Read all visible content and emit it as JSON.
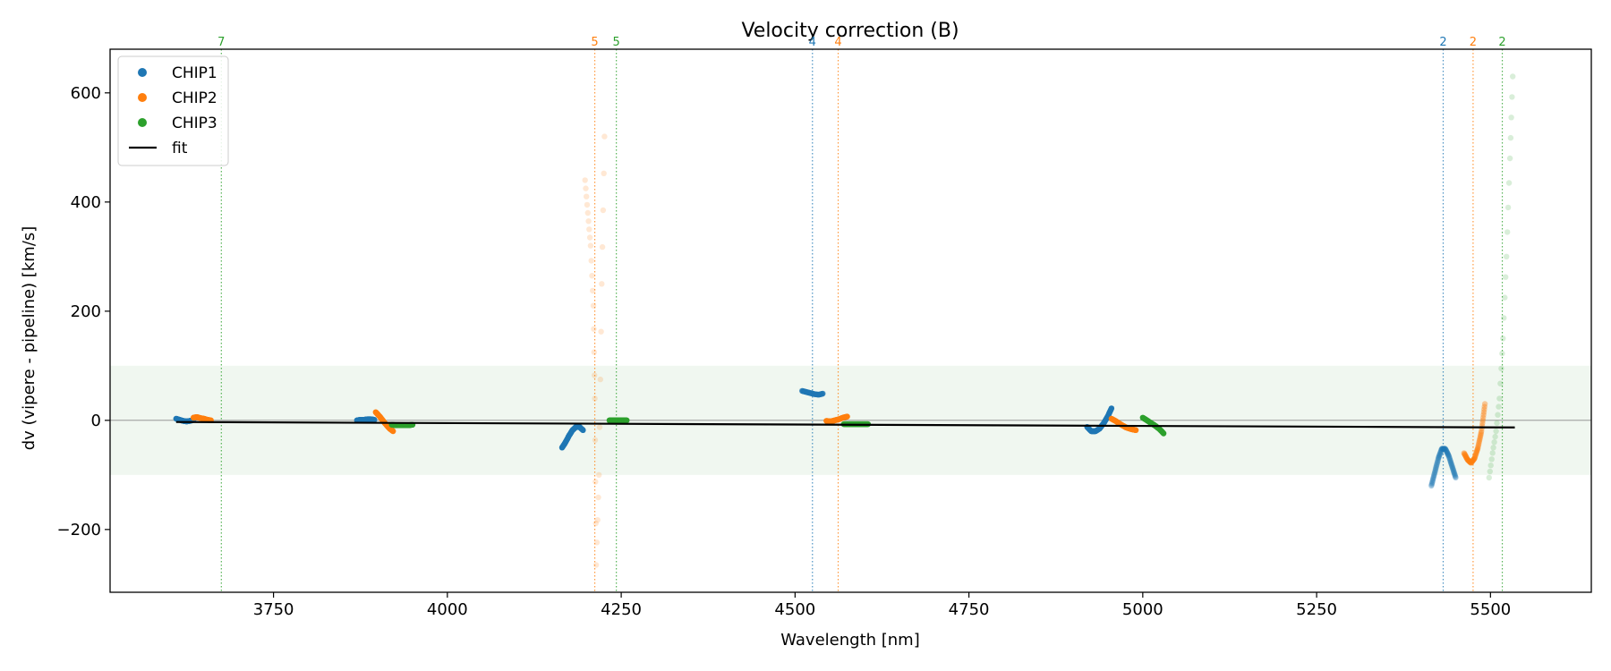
{
  "chart_data": {
    "type": "scatter",
    "title": "Velocity correction (B)",
    "xlabel": "Wavelength [nm]",
    "ylabel": "dv (vipere - pipeline) [km/s]",
    "xlim": [
      3515,
      5645
    ],
    "ylim": [
      -315,
      680
    ],
    "xticks": [
      3750,
      4000,
      4250,
      4500,
      4750,
      5000,
      5250,
      5500
    ],
    "yticks": [
      -200,
      0,
      200,
      400,
      600
    ],
    "tolerance_band": [
      -100,
      100
    ],
    "colors": {
      "CHIP1": "#1f77b4",
      "CHIP2": "#ff7f0e",
      "CHIP3": "#2ca02c",
      "fit": "#000000",
      "band": "#e6f2e6"
    },
    "legend": {
      "placement": "top-left",
      "entries": [
        {
          "label": "CHIP1",
          "kind": "marker",
          "color": "#1f77b4"
        },
        {
          "label": "CHIP2",
          "kind": "marker",
          "color": "#ff7f0e"
        },
        {
          "label": "CHIP3",
          "kind": "marker",
          "color": "#2ca02c"
        },
        {
          "label": "fit",
          "kind": "line",
          "color": "#000000"
        }
      ]
    },
    "vlines": [
      {
        "x": 3675,
        "label": "7",
        "chip": "CHIP3"
      },
      {
        "x": 4212,
        "label": "5",
        "chip": "CHIP2"
      },
      {
        "x": 4243,
        "label": "5",
        "chip": "CHIP3"
      },
      {
        "x": 4525,
        "label": "4",
        "chip": "CHIP1"
      },
      {
        "x": 4562,
        "label": "4",
        "chip": "CHIP2"
      },
      {
        "x": 5432,
        "label": "2",
        "chip": "CHIP1"
      },
      {
        "x": 5475,
        "label": "2",
        "chip": "CHIP2"
      },
      {
        "x": 5517,
        "label": "2",
        "chip": "CHIP3"
      }
    ],
    "fit": {
      "x": [
        3610,
        5535
      ],
      "y": [
        -3,
        -13
      ]
    },
    "segments": [
      {
        "chip": "CHIP1",
        "alpha": 1.0,
        "x": [
          3610,
          3615,
          3620,
          3625,
          3630,
          3635
        ],
        "y": [
          3,
          1,
          -1,
          -2,
          -1,
          1
        ]
      },
      {
        "chip": "CHIP2",
        "alpha": 1.0,
        "x": [
          3635,
          3640,
          3645,
          3650,
          3655,
          3660
        ],
        "y": [
          5,
          6,
          4,
          3,
          1,
          0
        ]
      },
      {
        "chip": "CHIP1",
        "alpha": 1.0,
        "x": [
          3870,
          3875,
          3880,
          3885,
          3890,
          3895
        ],
        "y": [
          0,
          1,
          1,
          2,
          2,
          1
        ]
      },
      {
        "chip": "CHIP2",
        "alpha": 1.0,
        "x": [
          3897,
          3902,
          3907,
          3912,
          3917,
          3922
        ],
        "y": [
          15,
          8,
          0,
          -8,
          -15,
          -20
        ]
      },
      {
        "chip": "CHIP3",
        "alpha": 1.0,
        "x": [
          3920,
          3926,
          3932,
          3938,
          3944,
          3950
        ],
        "y": [
          -8,
          -9,
          -9,
          -9,
          -9,
          -8
        ]
      },
      {
        "chip": "CHIP1",
        "alpha": 1.0,
        "x": [
          4165,
          4170,
          4175,
          4180,
          4185,
          4190,
          4195
        ],
        "y": [
          -50,
          -40,
          -28,
          -18,
          -12,
          -12,
          -18
        ]
      },
      {
        "chip": "CHIP2",
        "alpha": 0.18,
        "x": [
          4198,
          4202,
          4206,
          4210,
          4212,
          4214,
          4218,
          4222,
          4226
        ],
        "y": [
          440,
          380,
          320,
          210,
          40,
          -265,
          -100,
          250,
          520
        ]
      },
      {
        "chip": "CHIP3",
        "alpha": 1.0,
        "x": [
          4233,
          4238,
          4243,
          4248,
          4253,
          4258
        ],
        "y": [
          0,
          0,
          0,
          0,
          0,
          0
        ]
      },
      {
        "chip": "CHIP1",
        "alpha": 0.6,
        "x": [
          4510,
          4516,
          4522,
          4528,
          4534,
          4540
        ],
        "y": [
          54,
          52,
          50,
          48,
          47,
          49
        ]
      },
      {
        "chip": "CHIP2",
        "alpha": 1.0,
        "x": [
          4545,
          4551,
          4557,
          4563,
          4569,
          4575
        ],
        "y": [
          -1,
          -2,
          0,
          2,
          5,
          7
        ]
      },
      {
        "chip": "CHIP3",
        "alpha": 1.0,
        "x": [
          4570,
          4577,
          4584,
          4591,
          4598,
          4605
        ],
        "y": [
          -7,
          -7,
          -7,
          -7,
          -7,
          -7
        ]
      },
      {
        "chip": "CHIP1",
        "alpha": 1.0,
        "x": [
          4920,
          4926,
          4932,
          4938,
          4944,
          4950,
          4955
        ],
        "y": [
          -12,
          -20,
          -20,
          -15,
          -5,
          8,
          22
        ]
      },
      {
        "chip": "CHIP2",
        "alpha": 1.0,
        "x": [
          4955,
          4962,
          4969,
          4976,
          4983,
          4990
        ],
        "y": [
          3,
          -2,
          -8,
          -13,
          -16,
          -18
        ]
      },
      {
        "chip": "CHIP3",
        "alpha": 1.0,
        "x": [
          5000,
          5006,
          5012,
          5018,
          5024,
          5030
        ],
        "y": [
          5,
          0,
          -5,
          -10,
          -16,
          -24
        ]
      },
      {
        "chip": "CHIP1",
        "alpha": 0.35,
        "x": [
          5415,
          5420,
          5425,
          5430,
          5435,
          5440,
          5445,
          5450
        ],
        "y": [
          -120,
          -95,
          -70,
          -52,
          -52,
          -65,
          -85,
          -105
        ]
      },
      {
        "chip": "CHIP2",
        "alpha": 0.4,
        "x": [
          5462,
          5467,
          5472,
          5477,
          5482,
          5487,
          5492
        ],
        "y": [
          -60,
          -72,
          -78,
          -70,
          -50,
          -20,
          30
        ]
      },
      {
        "chip": "CHIP3",
        "alpha": 0.18,
        "x": [
          5498,
          5503,
          5508,
          5513,
          5518,
          5523,
          5528,
          5532
        ],
        "y": [
          -105,
          -60,
          -20,
          40,
          150,
          300,
          480,
          630
        ]
      }
    ]
  }
}
